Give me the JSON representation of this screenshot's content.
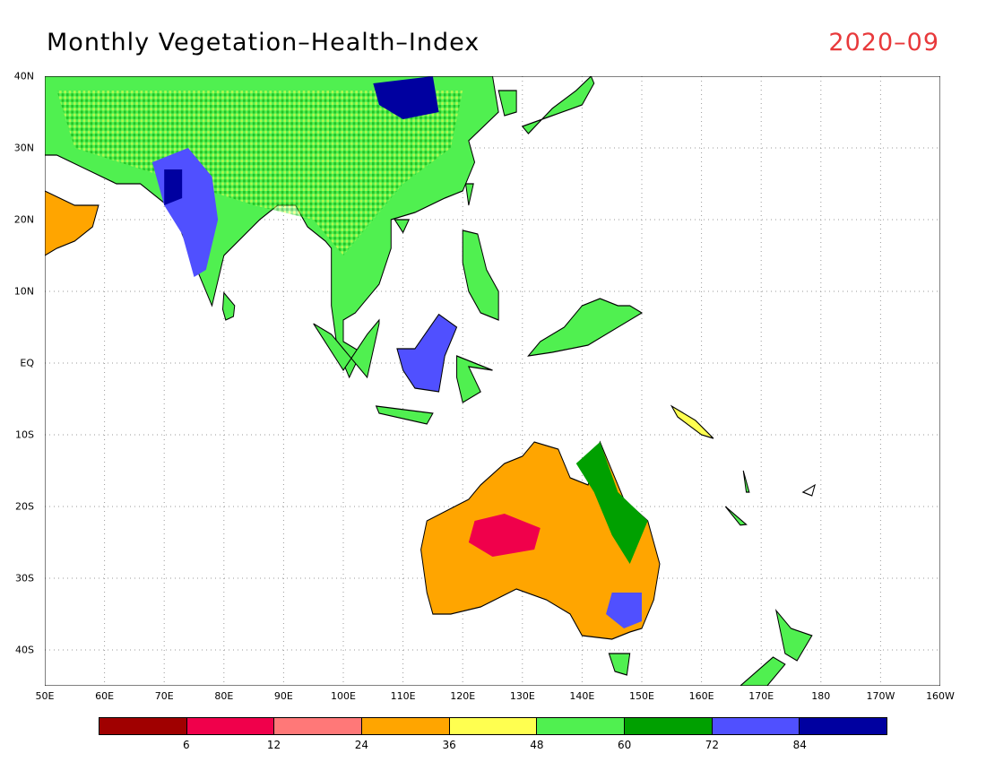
{
  "title": "Monthly Vegetation–Health–Index",
  "date": "2020–09",
  "date_color": "#e8393b",
  "map": {
    "lon_range": [
      50,
      200
    ],
    "lat_range": [
      -45,
      40
    ],
    "lat_labels": [
      "40N",
      "30N",
      "20N",
      "10N",
      "EQ",
      "10S",
      "20S",
      "30S",
      "40S"
    ],
    "lat_values": [
      40,
      30,
      20,
      10,
      0,
      -10,
      -20,
      -30,
      -40
    ],
    "lon_labels": [
      "50E",
      "60E",
      "70E",
      "80E",
      "90E",
      "100E",
      "110E",
      "120E",
      "130E",
      "140E",
      "150E",
      "160E",
      "170E",
      "180",
      "170W",
      "160W"
    ],
    "lon_values": [
      50,
      60,
      70,
      80,
      90,
      100,
      110,
      120,
      130,
      140,
      150,
      160,
      170,
      180,
      190,
      200
    ],
    "grid": "dotted"
  },
  "legend": {
    "colors": [
      "#a00000",
      "#f0004b",
      "#ff7878",
      "#ffa500",
      "#ffff50",
      "#50f050",
      "#00a000",
      "#5050ff",
      "#0000a0"
    ],
    "tick_labels": [
      "6",
      "12",
      "24",
      "36",
      "48",
      "60",
      "72",
      "84"
    ]
  }
}
